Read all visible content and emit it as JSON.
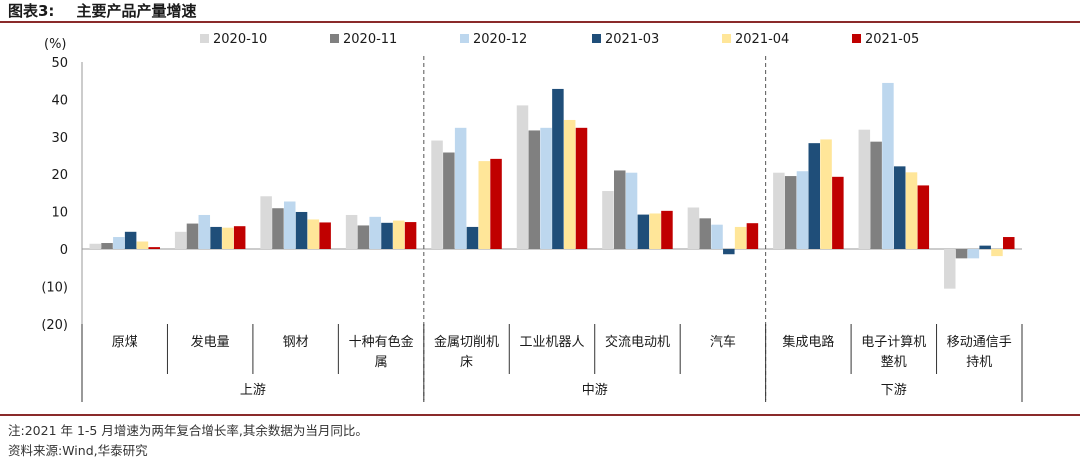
{
  "title": {
    "label": "图表3:",
    "text": "主要产品产量增速"
  },
  "notes": {
    "note": "注:2021 年 1-5 月增速为两年复合增长率,其余数据为当月同比。",
    "source": "资料来源:Wind,华泰研究"
  },
  "chart_data": {
    "type": "bar",
    "ylabel": "(%)",
    "ylim": [
      -20,
      50
    ],
    "yticks": [
      "50",
      "40",
      "30",
      "20",
      "10",
      "0",
      "(10)",
      "(20)"
    ],
    "legend_position": "top",
    "categories": [
      [
        "原煤"
      ],
      [
        "发电量"
      ],
      [
        "钢材"
      ],
      [
        "十种有色金",
        "属"
      ],
      [
        "金属切削机",
        "床"
      ],
      [
        "工业机器人"
      ],
      [
        "交流电动机"
      ],
      [
        "汽车"
      ],
      [
        "集成电路"
      ],
      [
        "电子计算机",
        "整机"
      ],
      [
        "移动通信手",
        "持机"
      ]
    ],
    "groups": [
      {
        "name": "上游",
        "span": [
          0,
          3
        ]
      },
      {
        "name": "中游",
        "span": [
          4,
          7
        ]
      },
      {
        "name": "下游",
        "span": [
          8,
          10
        ]
      }
    ],
    "series": [
      {
        "name": "2020-10",
        "color": "#d9d9d9",
        "values": [
          1.4,
          4.6,
          14.1,
          9.1,
          29.0,
          38.4,
          15.5,
          11.1,
          20.4,
          31.9,
          -10.6
        ]
      },
      {
        "name": "2020-11",
        "color": "#808080",
        "values": [
          1.6,
          6.8,
          10.9,
          6.3,
          25.8,
          31.7,
          21.0,
          8.2,
          19.5,
          28.7,
          -2.5
        ]
      },
      {
        "name": "2020-12",
        "color": "#bdd7ee",
        "values": [
          3.2,
          9.1,
          12.7,
          8.6,
          32.4,
          32.4,
          20.4,
          6.5,
          20.8,
          44.4,
          -2.5
        ]
      },
      {
        "name": "2021-03",
        "color": "#1f4e79",
        "values": [
          4.6,
          5.9,
          9.9,
          7.0,
          5.9,
          42.8,
          9.2,
          -1.4,
          28.3,
          22.1,
          0.9
        ]
      },
      {
        "name": "2021-04",
        "color": "#ffe699",
        "values": [
          2.0,
          5.7,
          7.9,
          7.6,
          23.5,
          34.5,
          9.5,
          5.9,
          29.3,
          20.5,
          -1.9
        ]
      },
      {
        "name": "2021-05",
        "color": "#c00000",
        "values": [
          0.5,
          6.1,
          7.1,
          7.2,
          24.1,
          32.4,
          10.2,
          6.9,
          19.3,
          17.0,
          3.2
        ]
      }
    ]
  }
}
